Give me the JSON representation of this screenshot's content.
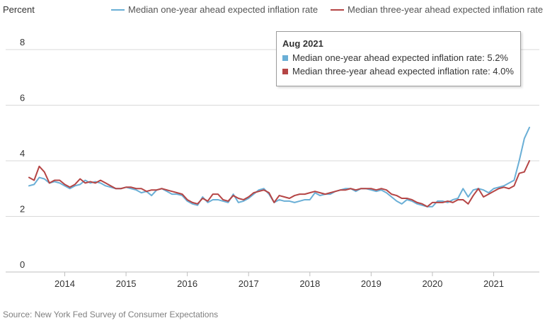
{
  "header": {
    "y_axis_unit": "Percent"
  },
  "legend": [
    {
      "label": "Median one-year ahead expected inflation rate",
      "color": "#6aafd6"
    },
    {
      "label": "Median three-year ahead expected inflation rate",
      "color": "#b54545"
    }
  ],
  "tooltip": {
    "title": "Aug 2021",
    "rows": [
      {
        "text": "Median one-year ahead expected inflation rate: 5.2%",
        "color": "#6aafd6"
      },
      {
        "text": "Median three-year ahead expected inflation rate: 4.0%",
        "color": "#b54545"
      }
    ]
  },
  "source": "Source: New York Fed Survey of Consumer Expectations",
  "chart_data": {
    "type": "line",
    "title": "",
    "xlabel": "",
    "ylabel": "Percent",
    "ylim": [
      0,
      8
    ],
    "yticks": [
      0,
      2,
      4,
      6,
      8
    ],
    "xtick_labels": [
      "2014",
      "2015",
      "2016",
      "2017",
      "2018",
      "2019",
      "2020",
      "2021"
    ],
    "xlim": [
      "2013-06",
      "2021-08"
    ],
    "grid": true,
    "legend_position": "top",
    "x": [
      "2013-06",
      "2013-07",
      "2013-08",
      "2013-09",
      "2013-10",
      "2013-11",
      "2013-12",
      "2014-01",
      "2014-02",
      "2014-03",
      "2014-04",
      "2014-05",
      "2014-06",
      "2014-07",
      "2014-08",
      "2014-09",
      "2014-10",
      "2014-11",
      "2014-12",
      "2015-01",
      "2015-02",
      "2015-03",
      "2015-04",
      "2015-05",
      "2015-06",
      "2015-07",
      "2015-08",
      "2015-09",
      "2015-10",
      "2015-11",
      "2015-12",
      "2016-01",
      "2016-02",
      "2016-03",
      "2016-04",
      "2016-05",
      "2016-06",
      "2016-07",
      "2016-08",
      "2016-09",
      "2016-10",
      "2016-11",
      "2016-12",
      "2017-01",
      "2017-02",
      "2017-03",
      "2017-04",
      "2017-05",
      "2017-06",
      "2017-07",
      "2017-08",
      "2017-09",
      "2017-10",
      "2017-11",
      "2017-12",
      "2018-01",
      "2018-02",
      "2018-03",
      "2018-04",
      "2018-05",
      "2018-06",
      "2018-07",
      "2018-08",
      "2018-09",
      "2018-10",
      "2018-11",
      "2018-12",
      "2019-01",
      "2019-02",
      "2019-03",
      "2019-04",
      "2019-05",
      "2019-06",
      "2019-07",
      "2019-08",
      "2019-09",
      "2019-10",
      "2019-11",
      "2019-12",
      "2020-01",
      "2020-02",
      "2020-03",
      "2020-04",
      "2020-05",
      "2020-06",
      "2020-07",
      "2020-08",
      "2020-09",
      "2020-10",
      "2020-11",
      "2020-12",
      "2021-01",
      "2021-02",
      "2021-03",
      "2021-04",
      "2021-05",
      "2021-06",
      "2021-07",
      "2021-08"
    ],
    "series": [
      {
        "name": "Median one-year ahead expected inflation rate",
        "color": "#6aafd6",
        "values": [
          3.1,
          3.15,
          3.4,
          3.35,
          3.2,
          3.25,
          3.2,
          3.1,
          3.0,
          3.1,
          3.15,
          3.3,
          3.2,
          3.25,
          3.2,
          3.1,
          3.05,
          3.0,
          3.0,
          3.05,
          3.0,
          2.95,
          2.85,
          2.9,
          2.75,
          2.95,
          3.0,
          2.9,
          2.8,
          2.8,
          2.75,
          2.55,
          2.45,
          2.4,
          2.7,
          2.5,
          2.6,
          2.6,
          2.55,
          2.5,
          2.8,
          2.5,
          2.55,
          2.65,
          2.8,
          2.95,
          3.0,
          2.8,
          2.5,
          2.6,
          2.55,
          2.55,
          2.5,
          2.55,
          2.6,
          2.6,
          2.85,
          2.75,
          2.8,
          2.8,
          2.9,
          2.95,
          3.0,
          3.0,
          2.9,
          3.0,
          3.0,
          2.95,
          2.9,
          2.95,
          2.85,
          2.7,
          2.55,
          2.45,
          2.6,
          2.55,
          2.45,
          2.4,
          2.35,
          2.35,
          2.55,
          2.55,
          2.5,
          2.6,
          2.65,
          3.0,
          2.7,
          2.95,
          3.0,
          2.95,
          2.85,
          3.0,
          3.05,
          3.1,
          3.2,
          3.3,
          4.0,
          4.8,
          5.2
        ]
      },
      {
        "name": "Median three-year ahead expected inflation rate",
        "color": "#b54545",
        "values": [
          3.4,
          3.3,
          3.8,
          3.6,
          3.2,
          3.3,
          3.3,
          3.15,
          3.05,
          3.15,
          3.35,
          3.2,
          3.25,
          3.2,
          3.3,
          3.2,
          3.1,
          3.0,
          3.0,
          3.05,
          3.05,
          3.0,
          3.0,
          2.9,
          2.95,
          2.95,
          3.0,
          2.95,
          2.9,
          2.85,
          2.8,
          2.6,
          2.5,
          2.45,
          2.65,
          2.55,
          2.8,
          2.8,
          2.6,
          2.55,
          2.75,
          2.65,
          2.6,
          2.7,
          2.85,
          2.9,
          2.95,
          2.85,
          2.5,
          2.75,
          2.7,
          2.65,
          2.75,
          2.8,
          2.8,
          2.85,
          2.9,
          2.85,
          2.8,
          2.85,
          2.9,
          2.95,
          2.95,
          3.0,
          2.95,
          3.0,
          3.0,
          3.0,
          2.95,
          3.0,
          2.95,
          2.8,
          2.75,
          2.65,
          2.65,
          2.6,
          2.5,
          2.45,
          2.35,
          2.5,
          2.5,
          2.5,
          2.55,
          2.5,
          2.6,
          2.6,
          2.45,
          2.75,
          3.0,
          2.7,
          2.8,
          2.9,
          3.0,
          3.05,
          3.0,
          3.1,
          3.55,
          3.6,
          4.0
        ]
      }
    ]
  }
}
